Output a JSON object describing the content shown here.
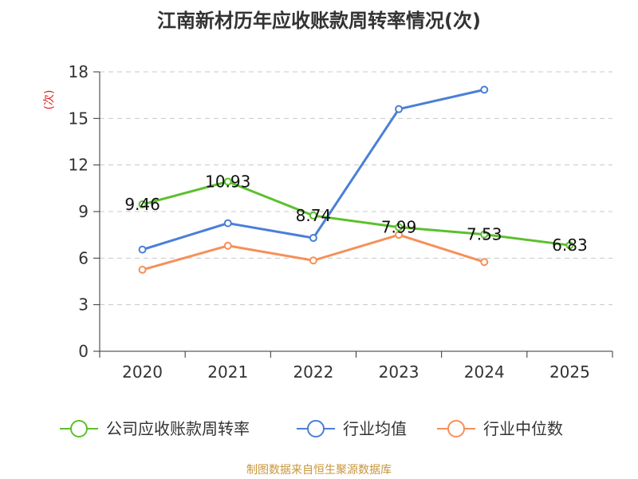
{
  "title": "江南新材历年应收账款周转率情况(次)",
  "source": "制图数据来自恒生聚源数据库",
  "chart_data": {
    "type": "line",
    "title": "江南新材历年应收账款周转率情况(次)",
    "xlabel": "",
    "ylabel": "(次)",
    "categories": [
      "2020",
      "2021",
      "2022",
      "2023",
      "2024",
      "2025"
    ],
    "ylim": [
      0,
      18
    ],
    "yticks": [
      0,
      3,
      6,
      9,
      12,
      15,
      18
    ],
    "grid": true,
    "legend_position": "bottom",
    "series": [
      {
        "name": "公司应收账款周转率",
        "color": "#5cc02e",
        "values": [
          9.46,
          10.93,
          8.74,
          7.99,
          7.53,
          6.83
        ],
        "labels": [
          "9.46",
          "10.93",
          "8.74",
          "7.99",
          "7.53",
          "6.83"
        ]
      },
      {
        "name": "行业均值",
        "color": "#4a7fd8",
        "values": [
          6.55,
          8.25,
          7.3,
          15.6,
          16.85,
          null
        ]
      },
      {
        "name": "行业中位数",
        "color": "#f5905a",
        "values": [
          5.25,
          6.8,
          5.85,
          7.5,
          5.75,
          null
        ]
      }
    ]
  }
}
